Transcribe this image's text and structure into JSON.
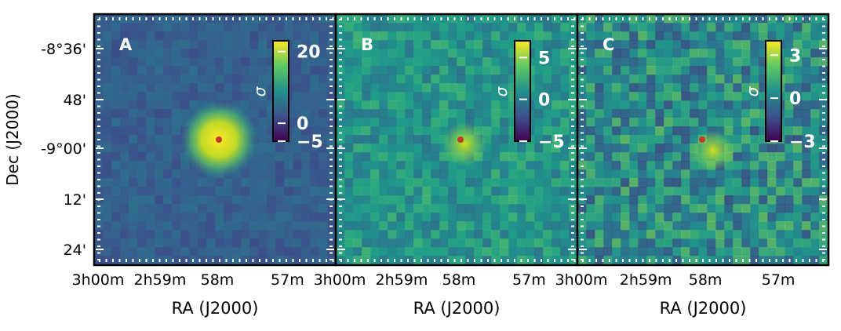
{
  "chart_data": [
    {
      "type": "heatmap",
      "panel_label": "A",
      "colorbar": {
        "label": "σ",
        "ticks": [
          "20",
          "0",
          "−5"
        ],
        "tick_values": [
          20,
          0,
          -5
        ],
        "range": [
          -5,
          23
        ]
      },
      "source": {
        "ra": "2h58m12s",
        "dec": "-8°57'"
      },
      "xlabel": "RA (J2000)",
      "ylabel": "Dec (J2000)",
      "x_ticks": [
        "3h00m",
        "2h59m",
        "58m",
        "57m"
      ],
      "y_ticks": [
        "-8°36'",
        "48'",
        "-9°00'",
        "12'",
        "24'"
      ]
    },
    {
      "type": "heatmap",
      "panel_label": "B",
      "colorbar": {
        "label": "σ",
        "ticks": [
          "5",
          "0",
          "−5"
        ],
        "tick_values": [
          5,
          0,
          -5
        ],
        "range": [
          -5,
          7
        ]
      },
      "source": {
        "ra": "2h58m12s",
        "dec": "-8°57'"
      },
      "xlabel": "RA (J2000)",
      "x_ticks": [
        "3h00m",
        "2h59m",
        "58m",
        "57m"
      ]
    },
    {
      "type": "heatmap",
      "panel_label": "C",
      "colorbar": {
        "label": "σ",
        "ticks": [
          "3",
          "0",
          "−3"
        ],
        "tick_values": [
          3,
          0,
          -3
        ],
        "range": [
          -3,
          4
        ]
      },
      "source": {
        "ra": "2h58m12s",
        "dec": "-8°57'"
      },
      "xlabel": "RA (J2000)",
      "x_ticks": [
        "3h00m",
        "2h59m",
        "58m",
        "57m"
      ]
    }
  ],
  "colors": {
    "viridis_dark": "#440154",
    "viridis_mid": "#21918c",
    "viridis_light": "#fde725",
    "source_marker": "#c0392b"
  }
}
